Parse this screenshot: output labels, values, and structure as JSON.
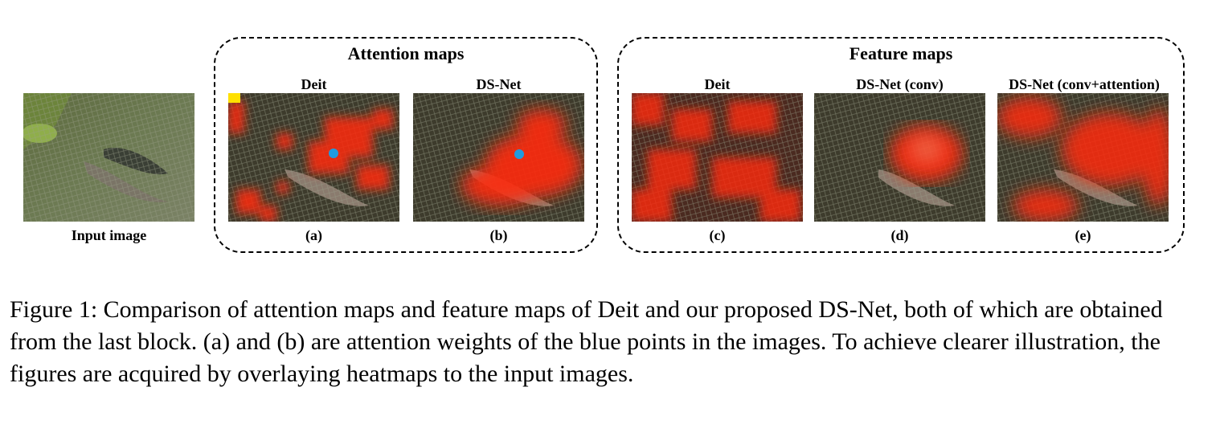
{
  "figure": {
    "input_label": "Input image",
    "groups": [
      {
        "title": "Attention maps"
      },
      {
        "title": "Feature maps"
      }
    ],
    "panels": [
      {
        "title": "Deit",
        "label": "(a)"
      },
      {
        "title": "DS-Net",
        "label": "(b)"
      },
      {
        "title": "Deit",
        "label": "(c)"
      },
      {
        "title": "DS-Net (conv)",
        "label": "(d)"
      },
      {
        "title": "DS-Net (conv+attention)",
        "label": "(e)"
      }
    ],
    "point_color": "#1f9be0",
    "heat_color": "#ff2a10"
  },
  "caption": "Figure 1: Comparison of attention maps and feature maps of Deit and our proposed DS-Net, both of which are obtained from the last block. (a) and (b) are attention weights of the blue points in the images. To achieve clearer illustration, the figures are acquired by overlaying heatmaps to the input images."
}
